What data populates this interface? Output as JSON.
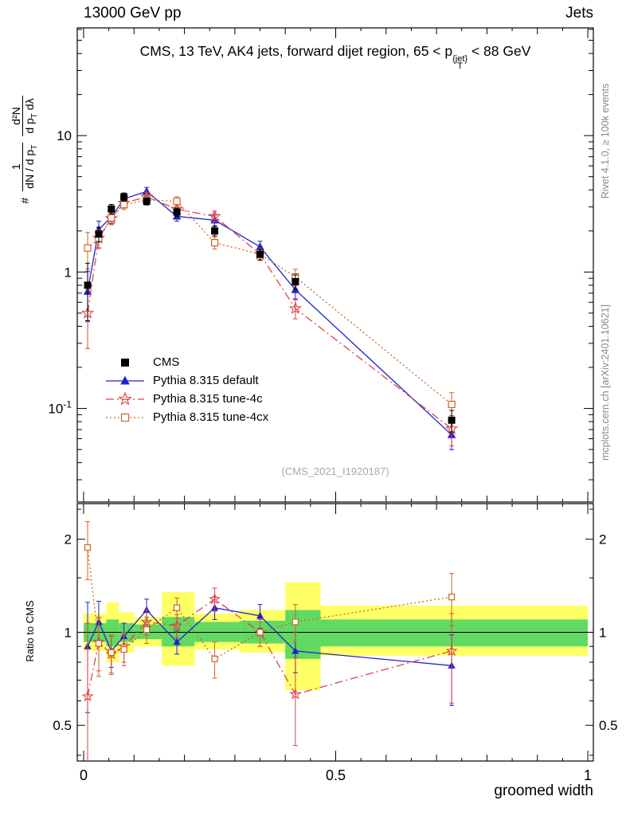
{
  "header": {
    "left": "13000 GeV pp",
    "right": "Jets"
  },
  "title": {
    "prefix": "CMS, 13 TeV, AK4 jets, forward dijet region, 65 < ",
    "p": "p",
    "p_sup": "{jet}",
    "p_sub": "T",
    "suffix": " < 88 GeV"
  },
  "ylabel_main": {
    "hash": "#",
    "frac1_num": "1",
    "frac1_den": "dN / d p",
    "frac1_den_sub": "T",
    "frac2_num": "d²N",
    "frac2_den_a": "d p",
    "frac2_den_a_sub": "T",
    "frac2_den_b": " dλ"
  },
  "ylabel_ratio": "Ratio to CMS",
  "xlabel": "groomed width",
  "watermark": "(CMS_2021_I1920187)",
  "side_text_top": "Rivet 4.1.0, ≥ 100k events",
  "side_text_bottom": "mcplots.cern.ch [arXiv:2401.10621]",
  "legend": [
    {
      "label": "CMS"
    },
    {
      "label": "Pythia 8.315 default"
    },
    {
      "label": "Pythia 8.315 tune-4c"
    },
    {
      "label": "Pythia 8.315 tune-4cx"
    }
  ],
  "chart_data": {
    "type": "line",
    "title": "CMS, 13 TeV, AK4 jets, forward dijet region, 65 < p_T^{jet} < 88 GeV",
    "xlabel": "groomed width",
    "ylabel": "# 1/(dN/dp_T) d²N/(dp_T dλ)",
    "ratio_label": "Ratio to CMS",
    "x_ticks": [
      0,
      0.5,
      1
    ],
    "x_tick_labels": [
      "0",
      "0.5",
      "1"
    ],
    "xlim": [
      -0.0126,
      1.011
    ],
    "main_ylim": [
      0.0206,
      61.6
    ],
    "main_yticks": [
      10,
      1,
      0.1
    ],
    "main_ytick_labels": [
      "10",
      "1",
      "10^-1"
    ],
    "ratio_ylim": [
      0.3833,
      2.607
    ],
    "ratio_yticks": [
      2,
      1,
      0.5
    ],
    "ratio_ytick_labels": [
      "2",
      "1",
      "0.5"
    ],
    "x": [
      0.008,
      0.03,
      0.055,
      0.08,
      0.125,
      0.185,
      0.26,
      0.35,
      0.42,
      0.73
    ],
    "series": [
      {
        "name": "CMS",
        "color": "#000000",
        "marker": "square",
        "line": "none",
        "y": [
          0.8,
          1.9,
          2.9,
          3.55,
          3.3,
          2.75,
          2.0,
          1.35,
          0.85,
          0.082
        ],
        "yerr_rel": [
          0.45,
          0.12,
          0.08,
          0.07,
          0.06,
          0.07,
          0.08,
          0.09,
          0.12,
          0.18
        ]
      },
      {
        "name": "Pythia 8.315 default",
        "color": "#2222cc",
        "marker": "triangle",
        "line": "solid",
        "y": [
          0.72,
          2.05,
          2.52,
          3.44,
          3.9,
          2.56,
          2.4,
          1.53,
          0.74,
          0.064
        ],
        "yerr_rel": [
          0.4,
          0.15,
          0.1,
          0.08,
          0.07,
          0.08,
          0.09,
          0.1,
          0.14,
          0.22
        ],
        "ratio": [
          0.9,
          1.08,
          0.87,
          0.97,
          1.18,
          0.93,
          1.2,
          1.13,
          0.87,
          0.78
        ],
        "ratio_err": [
          0.35,
          0.18,
          0.1,
          0.1,
          0.1,
          0.08,
          0.1,
          0.1,
          0.13,
          0.2
        ]
      },
      {
        "name": "Pythia 8.315 tune-4c",
        "color": "#dd4444",
        "marker": "star",
        "line": "dashdot",
        "y": [
          0.5,
          1.77,
          2.47,
          3.2,
          3.56,
          2.89,
          2.56,
          1.35,
          0.54,
          0.071
        ],
        "yerr_rel": [
          0.45,
          0.15,
          0.1,
          0.08,
          0.07,
          0.08,
          0.09,
          0.1,
          0.16,
          0.25
        ],
        "ratio": [
          0.62,
          0.93,
          0.85,
          0.9,
          1.08,
          1.05,
          1.28,
          1.0,
          0.63,
          0.87
        ],
        "ratio_err": [
          0.45,
          0.18,
          0.12,
          0.1,
          0.1,
          0.09,
          0.11,
          0.1,
          0.2,
          0.28
        ]
      },
      {
        "name": "Pythia 8.315 tune-4cx",
        "color": "#cc6622",
        "marker": "opensquare",
        "line": "dotted",
        "y": [
          1.5,
          1.75,
          2.49,
          3.12,
          3.37,
          3.3,
          1.64,
          1.35,
          0.92,
          0.107
        ],
        "yerr_rel": [
          0.3,
          0.15,
          0.1,
          0.08,
          0.07,
          0.08,
          0.1,
          0.1,
          0.14,
          0.22
        ],
        "ratio": [
          1.88,
          0.92,
          0.86,
          0.88,
          1.02,
          1.2,
          0.82,
          1.0,
          1.08,
          1.3
        ],
        "ratio_err": [
          0.4,
          0.2,
          0.12,
          0.1,
          0.1,
          0.09,
          0.11,
          0.1,
          0.15,
          0.25
        ]
      }
    ],
    "ratio_reference": 1,
    "band_colors": {
      "yellow": "#ffff66",
      "green": "#62d962"
    },
    "ratio_bands": [
      {
        "x0": 0.0,
        "x1": 0.016,
        "yellow": [
          0.87,
          1.15
        ],
        "green": [
          0.93,
          1.07
        ]
      },
      {
        "x0": 0.016,
        "x1": 0.045,
        "yellow": [
          0.87,
          1.15
        ],
        "green": [
          0.93,
          1.07
        ]
      },
      {
        "x0": 0.045,
        "x1": 0.07,
        "yellow": [
          0.8,
          1.25
        ],
        "green": [
          0.9,
          1.1
        ]
      },
      {
        "x0": 0.07,
        "x1": 0.1,
        "yellow": [
          0.86,
          1.16
        ],
        "green": [
          0.93,
          1.07
        ]
      },
      {
        "x0": 0.1,
        "x1": 0.155,
        "yellow": [
          0.9,
          1.12
        ],
        "green": [
          0.95,
          1.06
        ]
      },
      {
        "x0": 0.155,
        "x1": 0.22,
        "yellow": [
          0.78,
          1.35
        ],
        "green": [
          0.9,
          1.12
        ]
      },
      {
        "x0": 0.22,
        "x1": 0.31,
        "yellow": [
          0.88,
          1.15
        ],
        "green": [
          0.93,
          1.08
        ]
      },
      {
        "x0": 0.31,
        "x1": 0.4,
        "yellow": [
          0.86,
          1.18
        ],
        "green": [
          0.92,
          1.09
        ]
      },
      {
        "x0": 0.4,
        "x1": 0.47,
        "yellow": [
          0.65,
          1.45
        ],
        "green": [
          0.82,
          1.18
        ]
      },
      {
        "x0": 0.47,
        "x1": 1.0,
        "yellow": [
          0.84,
          1.22
        ],
        "green": [
          0.9,
          1.1
        ]
      }
    ]
  }
}
